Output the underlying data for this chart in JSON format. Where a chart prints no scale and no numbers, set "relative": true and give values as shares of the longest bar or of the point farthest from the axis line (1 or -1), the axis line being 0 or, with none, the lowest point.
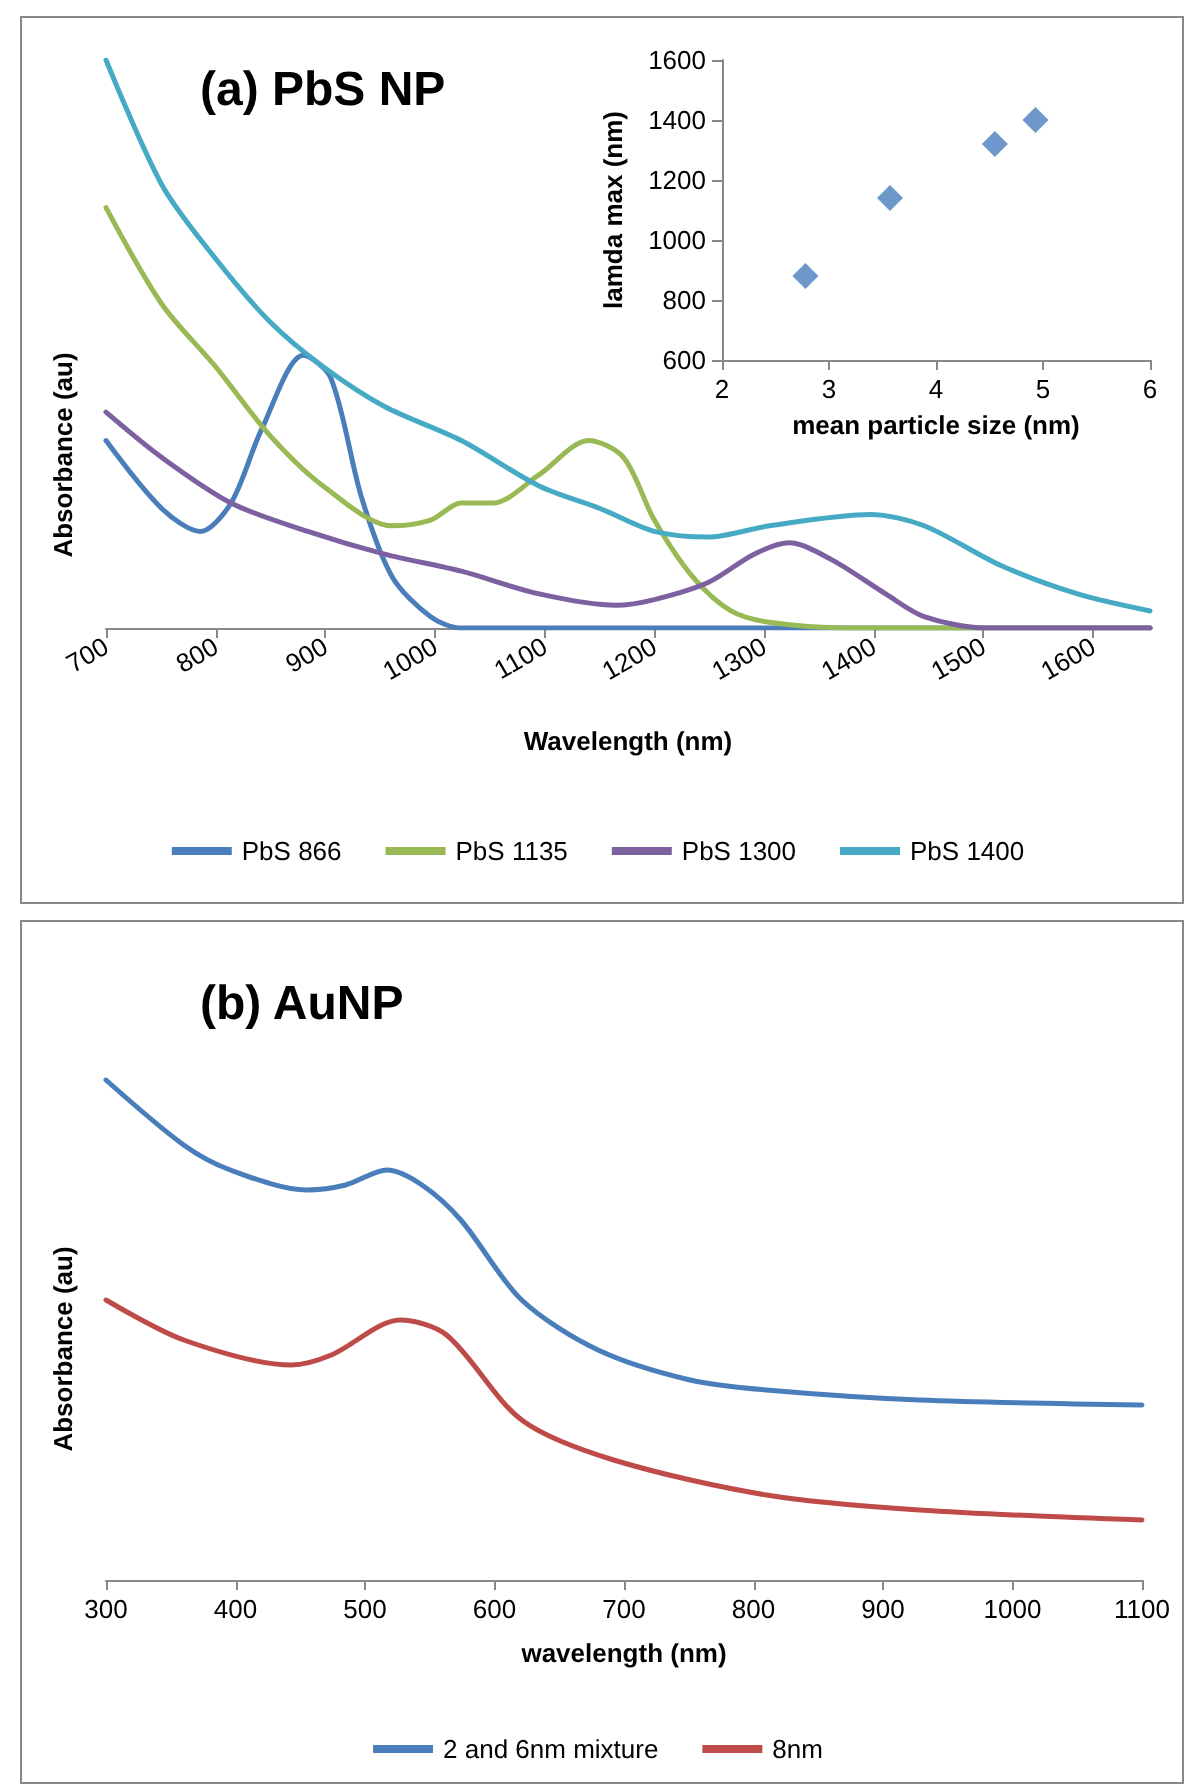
{
  "chart_data": [
    {
      "type": "line",
      "title": "(a) PbS NP",
      "xlabel": "Wavelength (nm)",
      "ylabel": "Absorbance (au)",
      "relative": true,
      "xlim": [
        700,
        1652
      ],
      "xticks": [
        700,
        800,
        900,
        1000,
        1100,
        1200,
        1300,
        1400,
        1500,
        1600
      ],
      "grid": false,
      "legend": "bottom",
      "marker": "none",
      "line_style": "solid",
      "series": [
        {
          "name": "PbS 866",
          "color": "#4a7ebb",
          "x": [
            700,
            751,
            786,
            814,
            842,
            880,
            905,
            933,
            961,
            996,
            1024,
            1652
          ],
          "values": [
            0.33,
            0.21,
            0.17,
            0.22,
            0.35,
            0.48,
            0.44,
            0.23,
            0.09,
            0.02,
            0,
            0
          ]
        },
        {
          "name": "PbS 1135",
          "color": "#98b954",
          "x": [
            700,
            751,
            800,
            849,
            898,
            961,
            996,
            1024,
            1053,
            1095,
            1140,
            1172,
            1200,
            1235,
            1270,
            1305,
            1376,
            1652
          ],
          "values": [
            0.74,
            0.57,
            0.46,
            0.34,
            0.25,
            0.18,
            0.19,
            0.22,
            0.22,
            0.27,
            0.33,
            0.3,
            0.19,
            0.09,
            0.03,
            0.01,
            0,
            0
          ]
        },
        {
          "name": "PbS 1300",
          "color": "#7d60a0",
          "x": [
            700,
            751,
            814,
            884,
            954,
            1024,
            1095,
            1165,
            1200,
            1249,
            1291,
            1323,
            1362,
            1411,
            1446,
            1502,
            1652
          ],
          "values": [
            0.38,
            0.3,
            0.22,
            0.17,
            0.13,
            0.1,
            0.06,
            0.04,
            0.05,
            0.08,
            0.13,
            0.15,
            0.12,
            0.06,
            0.02,
            0,
            0
          ]
        },
        {
          "name": "PbS 1400",
          "color": "#46aac5",
          "x": [
            700,
            751,
            800,
            849,
            898,
            954,
            1024,
            1095,
            1151,
            1200,
            1249,
            1305,
            1397,
            1446,
            1516,
            1586,
            1652
          ],
          "values": [
            1.0,
            0.78,
            0.65,
            0.54,
            0.46,
            0.39,
            0.33,
            0.25,
            0.21,
            0.17,
            0.16,
            0.18,
            0.2,
            0.18,
            0.11,
            0.06,
            0.03
          ]
        }
      ]
    },
    {
      "type": "scatter",
      "xlabel": "mean particle size (nm)",
      "ylabel": "lamda max (nm)",
      "xlim": [
        2,
        6
      ],
      "xticks": [
        2,
        3,
        4,
        5,
        6
      ],
      "ylim": [
        600,
        1600
      ],
      "yticks": [
        600,
        800,
        1000,
        1200,
        1400,
        1600
      ],
      "grid": false,
      "legend": false,
      "marker": "diamond",
      "series": [
        {
          "color": "#4a7ebb",
          "x": [
            2.78,
            3.57,
            4.55,
            4.93
          ],
          "values": [
            880,
            1140,
            1320,
            1400
          ]
        }
      ]
    },
    {
      "type": "line",
      "title": "(b) AuNP",
      "xlabel": "wavelength (nm)",
      "ylabel": "Absorbance (au)",
      "relative": true,
      "xlim": [
        300,
        1100
      ],
      "xticks": [
        300,
        400,
        500,
        600,
        700,
        800,
        900,
        1000,
        1100
      ],
      "grid": false,
      "legend": "bottom",
      "marker": "none",
      "line_style": "solid",
      "series": [
        {
          "name": "2 and 6nm mixture",
          "color": "#4a7ebb",
          "x": [
            300,
            360,
            396,
            455,
            485,
            517,
            544,
            574,
            621,
            680,
            751,
            810,
            928,
            1100
          ],
          "values": [
            1.0,
            0.87,
            0.82,
            0.78,
            0.79,
            0.82,
            0.79,
            0.72,
            0.56,
            0.46,
            0.4,
            0.38,
            0.36,
            0.35
          ]
        },
        {
          "name": "8nm",
          "color": "#be4b48",
          "x": [
            300,
            360,
            443,
            474,
            527,
            563,
            621,
            692,
            810,
            928,
            1100
          ],
          "values": [
            0.56,
            0.48,
            0.43,
            0.45,
            0.52,
            0.49,
            0.32,
            0.24,
            0.17,
            0.14,
            0.12
          ]
        }
      ]
    }
  ]
}
